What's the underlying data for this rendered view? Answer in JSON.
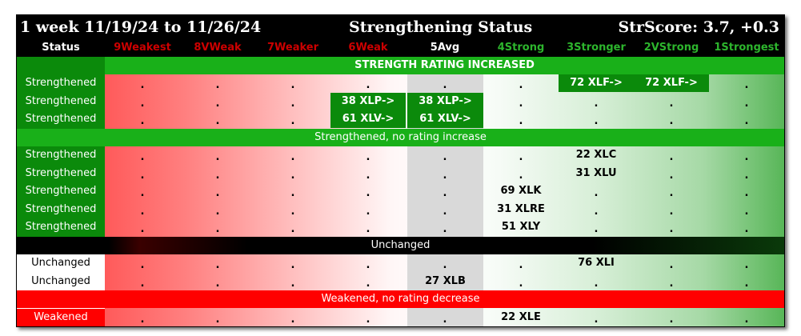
{
  "title": {
    "period": "1 week 11/19/24 to 11/26/24",
    "center": "Strengthening Status",
    "score": "StrScore: 3.7, +0.3"
  },
  "header": {
    "status": "Status",
    "columns": [
      "9Weakest",
      "8VWeak",
      "7Weaker",
      "6Weak",
      "5Avg",
      "4Strong",
      "3Stronger",
      "2VStrong",
      "1Strongest"
    ]
  },
  "colors": {
    "weak_header": "#cc0000",
    "avg_header": "#ffffff",
    "strong_header": "#2db52d",
    "strengthened_bg": "#0b8a0b",
    "band_green": "#19b019",
    "band_red": "#ff0000",
    "band_black": "#000000"
  },
  "bands": {
    "increased": "STRENGTH RATING INCREASED",
    "strengthened": "Strengthened, no rating increase",
    "unchanged": "Unchanged",
    "weakened": "Weakened, no rating decrease"
  },
  "dot": ".",
  "rows": [
    {
      "status": "Strengthened",
      "cells": [
        ".",
        ".",
        ".",
        ".",
        ".",
        ".",
        "72 XLF->",
        "72 XLF->",
        "."
      ]
    },
    {
      "status": "Strengthened",
      "cells": [
        ".",
        ".",
        ".",
        "38 XLP->",
        "38 XLP->",
        ".",
        ".",
        ".",
        "."
      ]
    },
    {
      "status": "Strengthened",
      "cells": [
        ".",
        ".",
        ".",
        "61 XLV->",
        "61 XLV->",
        ".",
        ".",
        ".",
        "."
      ]
    },
    {
      "status": "Strengthened",
      "cells": [
        ".",
        ".",
        ".",
        ".",
        ".",
        ".",
        "22 XLC",
        ".",
        "."
      ]
    },
    {
      "status": "Strengthened",
      "cells": [
        ".",
        ".",
        ".",
        ".",
        ".",
        ".",
        "31 XLU",
        ".",
        "."
      ]
    },
    {
      "status": "Strengthened",
      "cells": [
        ".",
        ".",
        ".",
        ".",
        ".",
        "69 XLK",
        ".",
        ".",
        "."
      ]
    },
    {
      "status": "Strengthened",
      "cells": [
        ".",
        ".",
        ".",
        ".",
        ".",
        "31 XLRE",
        ".",
        ".",
        "."
      ]
    },
    {
      "status": "Strengthened",
      "cells": [
        ".",
        ".",
        ".",
        ".",
        ".",
        "51 XLY",
        ".",
        ".",
        "."
      ]
    },
    {
      "status": "Unchanged",
      "cells": [
        ".",
        ".",
        ".",
        ".",
        ".",
        ".",
        "76 XLI",
        ".",
        "."
      ]
    },
    {
      "status": "Unchanged",
      "cells": [
        ".",
        ".",
        ".",
        ".",
        "27 XLB",
        ".",
        ".",
        ".",
        "."
      ]
    },
    {
      "status": "Weakened",
      "cells": [
        ".",
        ".",
        ".",
        ".",
        ".",
        "22 XLE",
        ".",
        ".",
        "."
      ]
    }
  ]
}
